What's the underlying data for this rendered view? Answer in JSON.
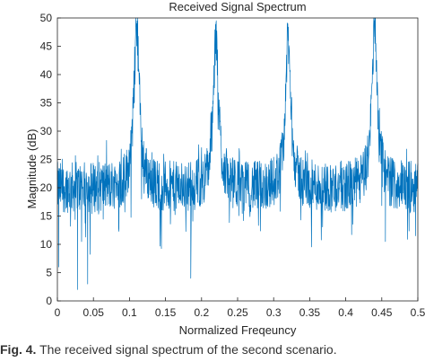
{
  "caption": {
    "label": "Fig. 4.",
    "text": "The received signal spectrum of the second scenario."
  },
  "chart_data": {
    "type": "line",
    "title": "Received Signal Spectrum",
    "xlabel": "Normalized Freqeuncy",
    "ylabel": "Magnitude (dB)",
    "xlim": [
      0,
      0.5
    ],
    "ylim": [
      0,
      50
    ],
    "xticks": [
      "0",
      "0.05",
      "0.1",
      "0.15",
      "0.2",
      "0.25",
      "0.3",
      "0.35",
      "0.4",
      "0.45",
      "0.5"
    ],
    "yticks": [
      "0",
      "5",
      "10",
      "15",
      "20",
      "25",
      "30",
      "35",
      "40",
      "45",
      "50"
    ],
    "grid": false,
    "line_color": "#0072BD",
    "noise_floor_db": 20,
    "peaks": [
      {
        "x": 0.11,
        "y": 49
      },
      {
        "x": 0.22,
        "y": 46
      },
      {
        "x": 0.32,
        "y": 46
      },
      {
        "x": 0.44,
        "y": 49.5
      }
    ],
    "deep_dips": [
      {
        "x": 0.002,
        "y": 6
      },
      {
        "x": 0.028,
        "y": 2
      },
      {
        "x": 0.042,
        "y": 3
      },
      {
        "x": 0.185,
        "y": 4
      },
      {
        "x": 0.455,
        "y": 10.5
      },
      {
        "x": 0.497,
        "y": 11.5
      }
    ]
  }
}
